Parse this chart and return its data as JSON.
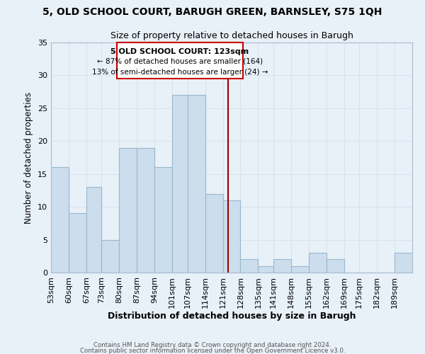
{
  "title": "5, OLD SCHOOL COURT, BARUGH GREEN, BARNSLEY, S75 1QH",
  "subtitle": "Size of property relative to detached houses in Barugh",
  "xlabel": "Distribution of detached houses by size in Barugh",
  "ylabel": "Number of detached properties",
  "footer_line1": "Contains HM Land Registry data © Crown copyright and database right 2024.",
  "footer_line2": "Contains public sector information licensed under the Open Government Licence v3.0.",
  "bar_labels": [
    "53sqm",
    "60sqm",
    "67sqm",
    "73sqm",
    "80sqm",
    "87sqm",
    "94sqm",
    "101sqm",
    "107sqm",
    "114sqm",
    "121sqm",
    "128sqm",
    "135sqm",
    "141sqm",
    "148sqm",
    "155sqm",
    "162sqm",
    "169sqm",
    "175sqm",
    "182sqm",
    "189sqm"
  ],
  "bar_values": [
    16,
    9,
    13,
    5,
    19,
    19,
    16,
    27,
    27,
    12,
    11,
    2,
    1,
    2,
    1,
    3,
    2,
    0,
    0,
    0,
    3
  ],
  "bar_color": "#ccdded",
  "bar_edge_color": "#9ab8cc",
  "property_line_x": 123,
  "bin_edges": [
    53,
    60,
    67,
    73,
    80,
    87,
    94,
    101,
    107,
    114,
    121,
    128,
    135,
    141,
    148,
    155,
    162,
    169,
    175,
    182,
    189,
    196
  ],
  "xlim": [
    53,
    196
  ],
  "ylim": [
    0,
    35
  ],
  "annotation_title": "5 OLD SCHOOL COURT: 123sqm",
  "annotation_line1": "← 87% of detached houses are smaller (164)",
  "annotation_line2": "13% of semi-detached houses are larger (24) →",
  "annotation_box_color": "#ffffff",
  "annotation_box_edge_color": "#cc0000",
  "property_line_color": "#990000",
  "background_color": "#e8f0f8",
  "grid_color": "#d8e4ef",
  "title_fontsize": 10,
  "subtitle_fontsize": 9
}
